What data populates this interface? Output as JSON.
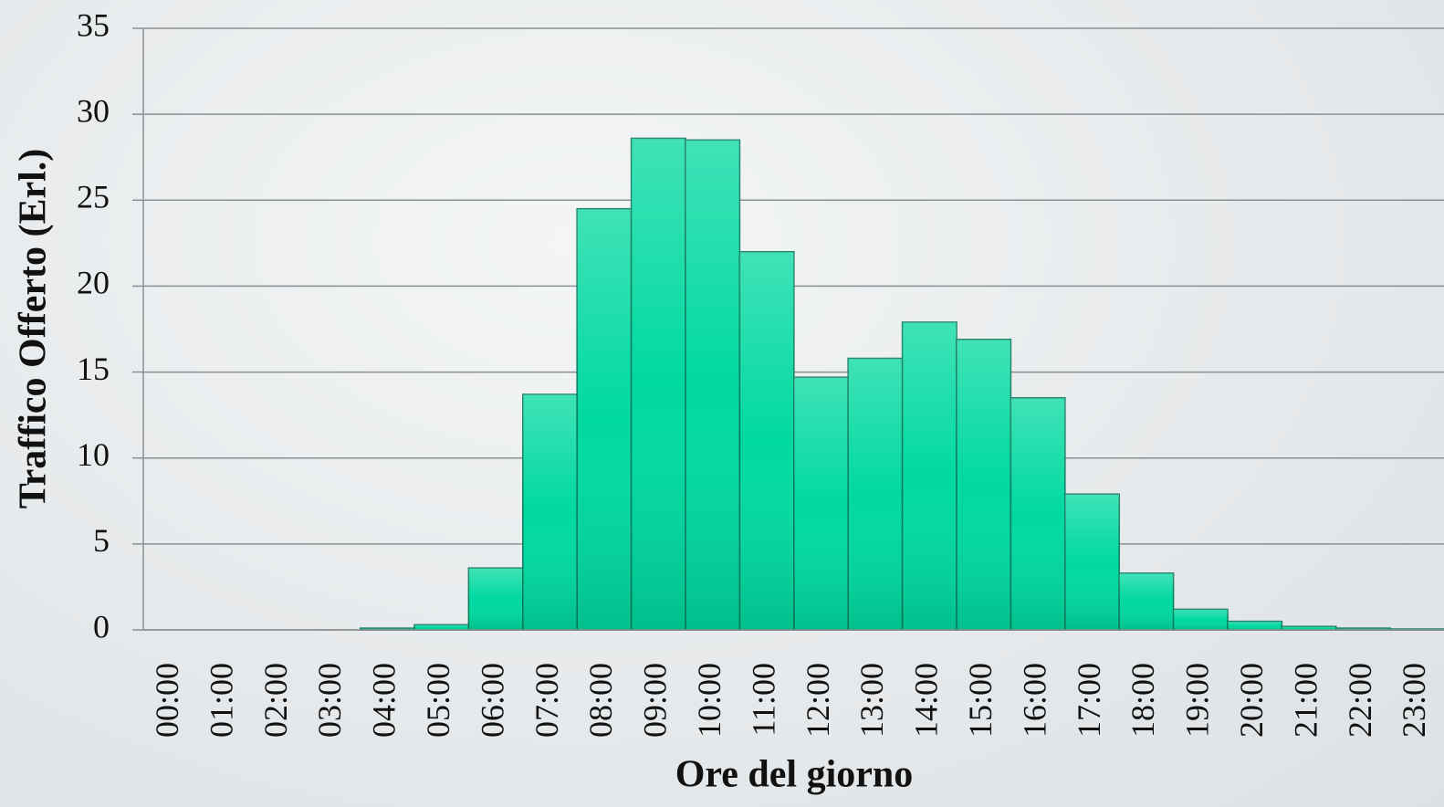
{
  "chart_data": {
    "type": "bar",
    "xlabel": "Ore del giorno",
    "ylabel": "Traffico Offerto (Erl.)",
    "categories": [
      "00:00",
      "01:00",
      "02:00",
      "03:00",
      "04:00",
      "05:00",
      "06:00",
      "07:00",
      "08:00",
      "09:00",
      "10:00",
      "11:00",
      "12:00",
      "13:00",
      "14:00",
      "15:00",
      "16:00",
      "17:00",
      "18:00",
      "19:00",
      "20:00",
      "21:00",
      "22:00",
      "23:00"
    ],
    "values": [
      0,
      0,
      0,
      0,
      0.1,
      0.3,
      3.6,
      13.7,
      24.5,
      28.6,
      28.5,
      22,
      14.7,
      15.8,
      17.9,
      16.9,
      13.5,
      7.9,
      3.3,
      1.2,
      0.5,
      0.2,
      0.1,
      0.05
    ],
    "color": "#00d9a0",
    "ylim": [
      0,
      35
    ],
    "yticks": [
      0,
      5,
      10,
      15,
      20,
      25,
      30,
      35
    ],
    "grid": true
  }
}
